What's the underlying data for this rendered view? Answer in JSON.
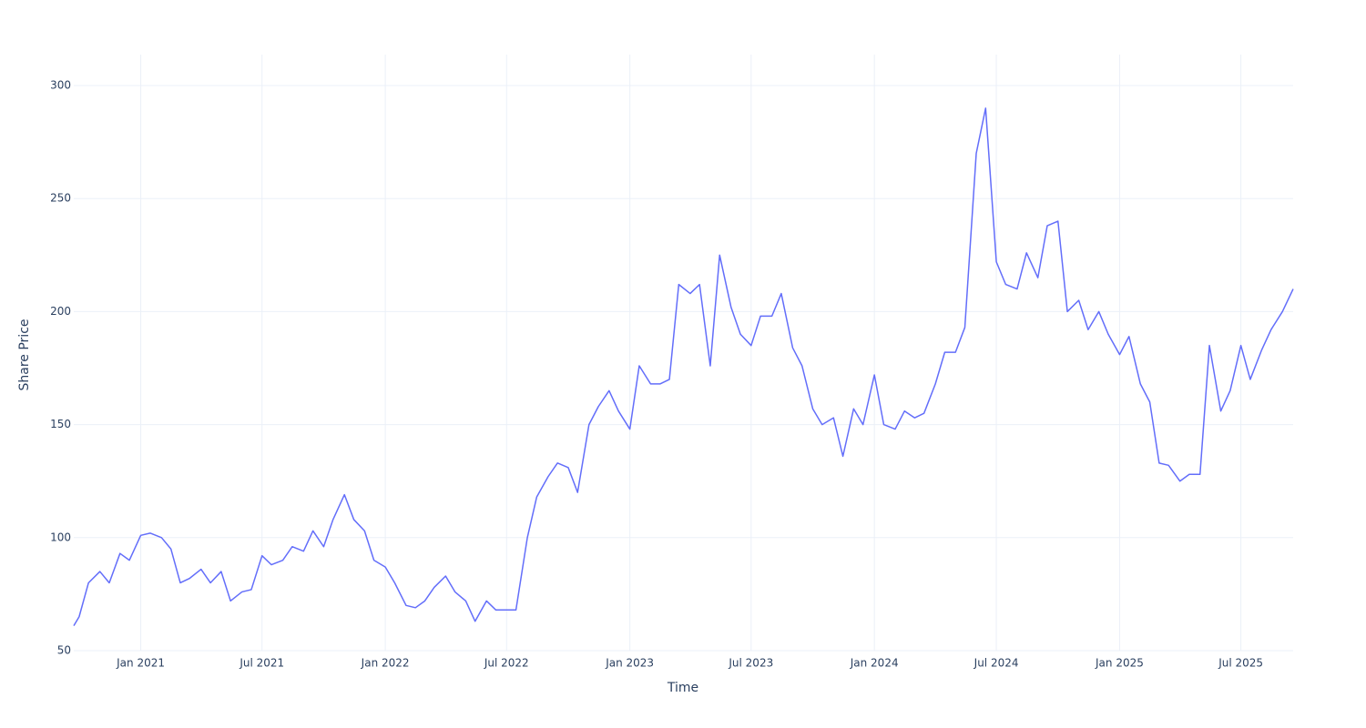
{
  "chart_data": {
    "type": "line",
    "xlabel": "Time",
    "ylabel": "Share Price",
    "x": [
      "2020-09-23",
      "2020-10-01",
      "2020-10-15",
      "2020-11-01",
      "2020-11-15",
      "2020-12-01",
      "2020-12-15",
      "2021-01-01",
      "2021-01-15",
      "2021-02-01",
      "2021-02-15",
      "2021-03-01",
      "2021-03-15",
      "2021-04-01",
      "2021-04-15",
      "2021-05-01",
      "2021-05-15",
      "2021-06-01",
      "2021-06-15",
      "2021-07-01",
      "2021-07-15",
      "2021-08-01",
      "2021-08-15",
      "2021-09-01",
      "2021-09-15",
      "2021-10-01",
      "2021-10-15",
      "2021-11-01",
      "2021-11-15",
      "2021-12-01",
      "2021-12-15",
      "2022-01-01",
      "2022-01-15",
      "2022-02-01",
      "2022-02-15",
      "2022-03-01",
      "2022-03-15",
      "2022-04-01",
      "2022-04-15",
      "2022-05-01",
      "2022-05-15",
      "2022-06-01",
      "2022-06-15",
      "2022-07-01",
      "2022-07-15",
      "2022-08-01",
      "2022-08-15",
      "2022-09-01",
      "2022-09-15",
      "2022-10-01",
      "2022-10-15",
      "2022-11-01",
      "2022-11-15",
      "2022-12-01",
      "2022-12-15",
      "2023-01-01",
      "2023-01-15",
      "2023-02-01",
      "2023-02-15",
      "2023-03-01",
      "2023-03-15",
      "2023-04-01",
      "2023-04-15",
      "2023-05-01",
      "2023-05-15",
      "2023-06-01",
      "2023-06-15",
      "2023-07-01",
      "2023-07-15",
      "2023-08-01",
      "2023-08-15",
      "2023-09-01",
      "2023-09-15",
      "2023-10-01",
      "2023-10-15",
      "2023-11-01",
      "2023-11-15",
      "2023-12-01",
      "2023-12-15",
      "2024-01-01",
      "2024-01-15",
      "2024-02-01",
      "2024-02-15",
      "2024-03-01",
      "2024-03-15",
      "2024-04-01",
      "2024-04-15",
      "2024-05-01",
      "2024-05-15",
      "2024-06-01",
      "2024-06-15",
      "2024-07-01",
      "2024-07-15",
      "2024-08-01",
      "2024-08-15",
      "2024-09-01",
      "2024-09-15",
      "2024-10-01",
      "2024-10-15",
      "2024-11-01",
      "2024-11-15",
      "2024-12-01",
      "2024-12-15",
      "2025-01-01",
      "2025-01-15",
      "2025-02-01",
      "2025-02-15",
      "2025-03-01",
      "2025-03-15",
      "2025-04-01",
      "2025-04-15",
      "2025-05-01",
      "2025-05-15",
      "2025-06-01",
      "2025-06-15",
      "2025-07-01",
      "2025-07-15",
      "2025-08-01",
      "2025-08-15",
      "2025-09-01",
      "2025-09-17"
    ],
    "series": [
      {
        "color": "#636efa",
        "values": [
          61,
          65,
          80,
          85,
          80,
          93,
          90,
          101,
          102,
          100,
          95,
          80,
          82,
          86,
          80,
          85,
          72,
          76,
          77,
          92,
          88,
          90,
          96,
          94,
          103,
          96,
          108,
          119,
          108,
          103,
          90,
          87,
          80,
          70,
          69,
          72,
          78,
          83,
          76,
          72,
          63,
          72,
          68,
          68,
          68,
          100,
          118,
          127,
          133,
          131,
          120,
          150,
          158,
          165,
          156,
          148,
          176,
          168,
          168,
          170,
          212,
          208,
          212,
          176,
          225,
          202,
          190,
          185,
          198,
          198,
          208,
          184,
          176,
          157,
          150,
          153,
          136,
          157,
          150,
          172,
          150,
          148,
          156,
          153,
          155,
          168,
          182,
          182,
          193,
          270,
          290,
          222,
          212,
          210,
          226,
          215,
          238,
          240,
          200,
          205,
          192,
          200,
          190,
          181,
          189,
          168,
          160,
          133,
          132,
          125,
          128,
          128,
          185,
          156,
          165,
          185,
          170,
          183,
          192,
          200,
          210
        ]
      }
    ],
    "xlim": [
      "2020-09-23",
      "2025-09-17"
    ],
    "xticks": [
      {
        "value": "2021-01-01",
        "label": "Jan 2021"
      },
      {
        "value": "2021-07-01",
        "label": "Jul 2021"
      },
      {
        "value": "2022-01-01",
        "label": "Jan 2022"
      },
      {
        "value": "2022-07-01",
        "label": "Jul 2022"
      },
      {
        "value": "2023-01-01",
        "label": "Jan 2023"
      },
      {
        "value": "2023-07-01",
        "label": "Jul 2023"
      },
      {
        "value": "2024-01-01",
        "label": "Jan 2024"
      },
      {
        "value": "2024-07-01",
        "label": "Jul 2024"
      },
      {
        "value": "2025-01-01",
        "label": "Jan 2025"
      },
      {
        "value": "2025-07-01",
        "label": "Jul 2025"
      }
    ],
    "ylim": [
      50,
      313.7
    ],
    "yticks": [
      50,
      100,
      150,
      200,
      250,
      300
    ],
    "grid": true
  }
}
